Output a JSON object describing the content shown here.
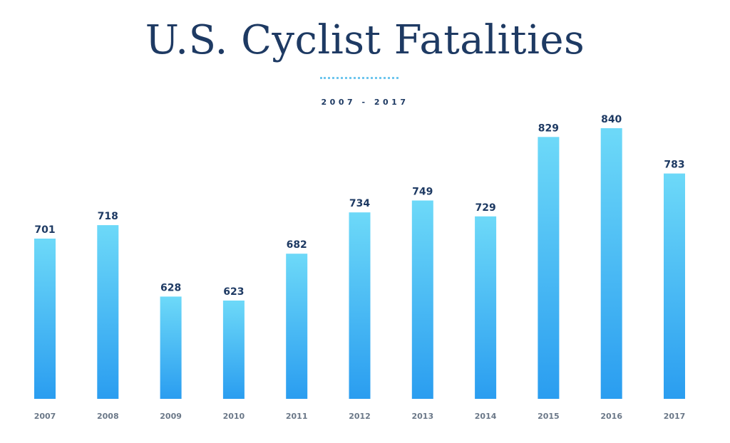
{
  "chart_data": {
    "type": "bar",
    "title": "U.S. Cyclist Fatalities",
    "subtitle": "2007 - 2017",
    "xlabel": "",
    "ylabel": "",
    "categories": [
      "2007",
      "2008",
      "2009",
      "2010",
      "2011",
      "2012",
      "2013",
      "2014",
      "2015",
      "2016",
      "2017"
    ],
    "values": [
      701,
      718,
      628,
      623,
      682,
      734,
      749,
      729,
      829,
      840,
      783
    ],
    "ylim": [
      470,
      840
    ],
    "grid": false,
    "legend": "none",
    "data_labels": true,
    "colors": {
      "bar_top": "#6dd9f8",
      "bar_bottom": "#2a9df0",
      "title": "#1e3a63",
      "value_label": "#1e3a63",
      "tick_label": "#6b7888",
      "divider": "#6fc6ee"
    }
  }
}
